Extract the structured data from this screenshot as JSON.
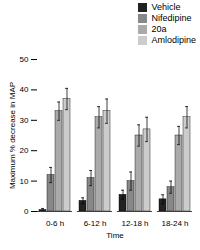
{
  "chart_data": {
    "type": "bar",
    "xlabel": "Time",
    "ylabel": "Maximum % decrease in MAP",
    "categories": [
      "0-6 h",
      "6-12 h",
      "12-18 h",
      "18-24 h"
    ],
    "series": [
      {
        "name": "Vehicle",
        "color": "#222222",
        "values": [
          0.5,
          3.5,
          5.5,
          4.0
        ],
        "errors": [
          0.5,
          1.0,
          1.5,
          1.5
        ]
      },
      {
        "name": "Nifedipine",
        "color": "#888888",
        "values": [
          12,
          11,
          10,
          8
        ],
        "errors": [
          2.5,
          2.5,
          3.0,
          2.0
        ]
      },
      {
        "name": "20a",
        "color": "#aaaaaa",
        "values": [
          33,
          31,
          25,
          25
        ],
        "errors": [
          3.0,
          3.5,
          3.5,
          3.0
        ]
      },
      {
        "name": "Amlodipine",
        "color": "#cccccc",
        "values": [
          37,
          33,
          27,
          31
        ],
        "errors": [
          3.5,
          4.0,
          4.0,
          3.5
        ]
      }
    ],
    "ylim": [
      0,
      50
    ],
    "yticks": [
      0,
      10,
      20,
      30,
      40,
      50
    ],
    "legend": "upper right",
    "grid": false
  }
}
